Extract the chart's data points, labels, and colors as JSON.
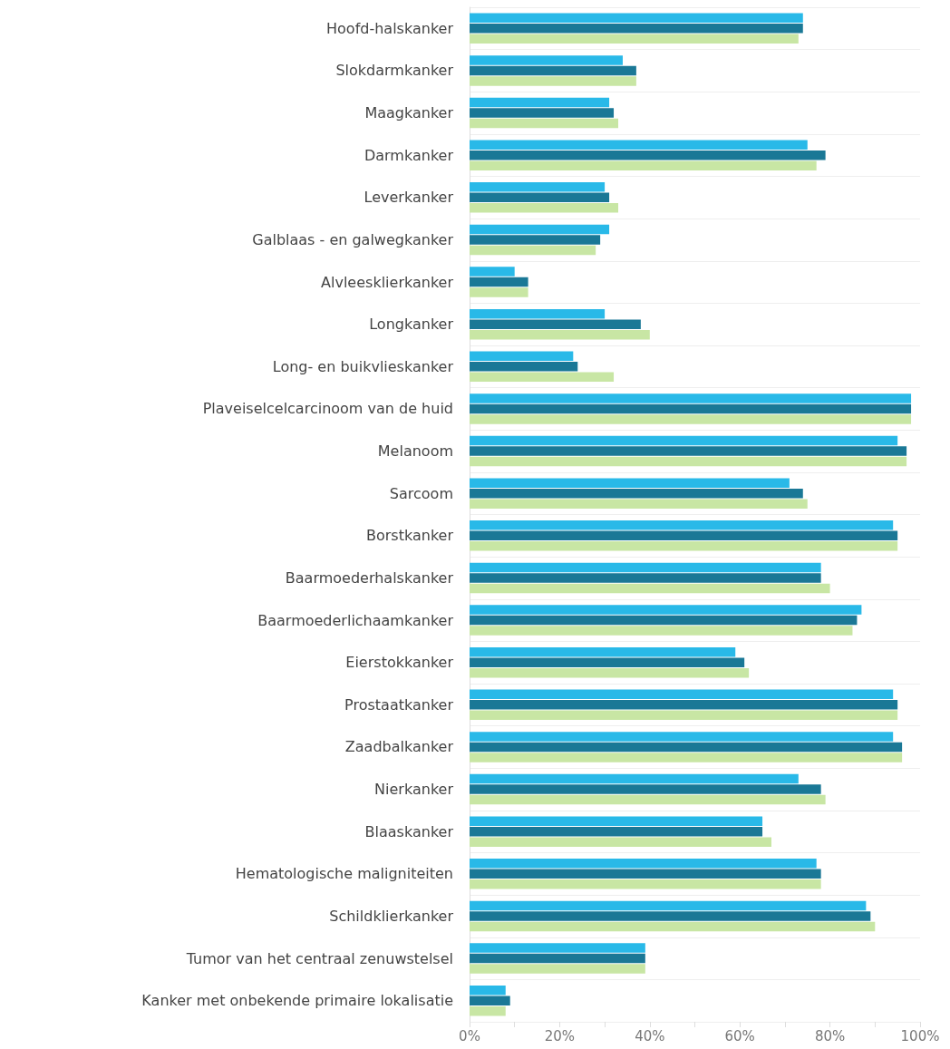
{
  "chart_data": {
    "type": "bar",
    "orientation": "horizontal",
    "categories": [
      "Hoofd-halskanker",
      "Slokdarmkanker",
      "Maagkanker",
      "Darmkanker",
      "Leverkanker",
      "Galblaas - en galwegkanker",
      "Alvleesklierkanker",
      "Longkanker",
      "Long- en buikvlieskanker",
      "Plaveiselcelcarcinoom van de huid",
      "Melanoom",
      "Sarcoom",
      "Borstkanker",
      "Baarmoederhalskanker",
      "Baarmoederlichaamkanker",
      "Eierstokkanker",
      "Prostaatkanker",
      "Zaadbalkanker",
      "Nierkanker",
      "Blaaskanker",
      "Hematologische maligniteiten",
      "Schildklierkanker",
      "Tumor van het centraal zenuwstelsel",
      "Kanker met onbekende primaire lokalisatie"
    ],
    "series": [
      {
        "color": "#29b9e8",
        "values": [
          74,
          34,
          31,
          75,
          30,
          31,
          10,
          30,
          23,
          98,
          95,
          71,
          94,
          78,
          87,
          59,
          94,
          94,
          73,
          65,
          77,
          88,
          39,
          8
        ]
      },
      {
        "color": "#1a7896",
        "values": [
          74,
          37,
          32,
          79,
          31,
          29,
          13,
          38,
          24,
          98,
          97,
          74,
          95,
          78,
          86,
          61,
          95,
          96,
          78,
          65,
          78,
          89,
          39,
          9
        ]
      },
      {
        "color": "#c8e6a4",
        "values": [
          73,
          37,
          33,
          77,
          33,
          28,
          13,
          40,
          32,
          98,
          97,
          75,
          95,
          80,
          85,
          62,
          95,
          96,
          79,
          67,
          78,
          90,
          39,
          8
        ]
      }
    ],
    "xlim": [
      0,
      100
    ],
    "xticks": [
      {
        "value": 0,
        "label": "0%"
      },
      {
        "value": 10,
        "label": null
      },
      {
        "value": 20,
        "label": "20%"
      },
      {
        "value": 30,
        "label": null
      },
      {
        "value": 40,
        "label": "40%"
      },
      {
        "value": 50,
        "label": null
      },
      {
        "value": 60,
        "label": "60%"
      },
      {
        "value": 70,
        "label": null
      },
      {
        "value": 80,
        "label": "80%"
      },
      {
        "value": 90,
        "label": null
      },
      {
        "value": 100,
        "label": "100%"
      }
    ],
    "grid": "y"
  }
}
